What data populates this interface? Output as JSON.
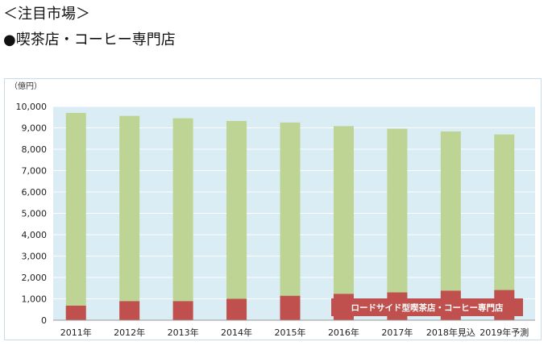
{
  "page": {
    "heading": "＜注目市場＞",
    "subheading": "●喫茶店・コーヒー専門店"
  },
  "colors": {
    "plot_background": "#daedf5",
    "total_bar": "#bdd494",
    "segment_bar": "#c0504d",
    "legend_label_background": "#c0504d",
    "legend_label_text": "#ffffff",
    "gridline": "#ffffff"
  },
  "chart_data": {
    "type": "bar",
    "title": "",
    "ylabel": "（億円）",
    "xlabel": "",
    "ylim": [
      0,
      10000
    ],
    "yticks": [
      0,
      1000,
      2000,
      3000,
      4000,
      5000,
      6000,
      7000,
      8000,
      9000,
      10000
    ],
    "ytick_labels": [
      "0",
      "1,000",
      "2,000",
      "3,000",
      "4,000",
      "5,000",
      "6,000",
      "7,000",
      "8,000",
      "9,000",
      "10,000"
    ],
    "grid": true,
    "categories": [
      "2011年",
      "2012年",
      "2013年",
      "2014年",
      "2015年",
      "2016年",
      "2017年",
      "2018年見込",
      "2019年予測"
    ],
    "series": [
      {
        "name": "",
        "role": "total",
        "values": [
          9700,
          9560,
          9450,
          9320,
          9250,
          9080,
          8960,
          8830,
          8690
        ]
      },
      {
        "name": "ロードサイド型喫茶店・コーヒー専門店",
        "role": "segment",
        "values": [
          680,
          890,
          890,
          1000,
          1140,
          1230,
          1300,
          1380,
          1410
        ]
      }
    ],
    "legend_position": "inside-bottom-right"
  }
}
